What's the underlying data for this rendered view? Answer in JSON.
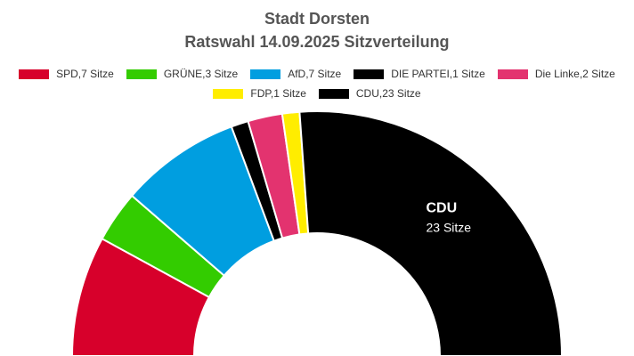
{
  "header": {
    "title": "Stadt Dorsten",
    "subtitle": "Ratswahl 14.09.2025 Sitzverteilung"
  },
  "chart_data": {
    "type": "pie",
    "variant": "semicircle-donut",
    "title": "Stadt Dorsten",
    "subtitle": "Ratswahl 14.09.2025 Sitzverteilung",
    "total_seats": 44,
    "legend_placement": "top",
    "series": [
      {
        "party": "SPD",
        "seats": 7,
        "legend": "SPD,7 Sitze",
        "color": "#d7002b"
      },
      {
        "party": "GRÜNE",
        "seats": 3,
        "legend": "GRÜNE,3 Sitze",
        "color": "#33cc00"
      },
      {
        "party": "AfD",
        "seats": 7,
        "legend": "AfD,7 Sitze",
        "color": "#009ee0"
      },
      {
        "party": "DIE PARTEI",
        "seats": 1,
        "legend": "DIE PARTEI,1 Sitze",
        "color": "#000000"
      },
      {
        "party": "Die Linke",
        "seats": 2,
        "legend": "Die Linke,2 Sitze",
        "color": "#e3336f"
      },
      {
        "party": "FDP",
        "seats": 1,
        "legend": "FDP,1 Sitze",
        "color": "#ffed00"
      },
      {
        "party": "CDU",
        "seats": 23,
        "legend": "CDU,23 Sitze",
        "color": "#000000"
      }
    ],
    "slice_label": {
      "party": "CDU",
      "name": "CDU",
      "seats_text": "23 Sitze"
    }
  }
}
